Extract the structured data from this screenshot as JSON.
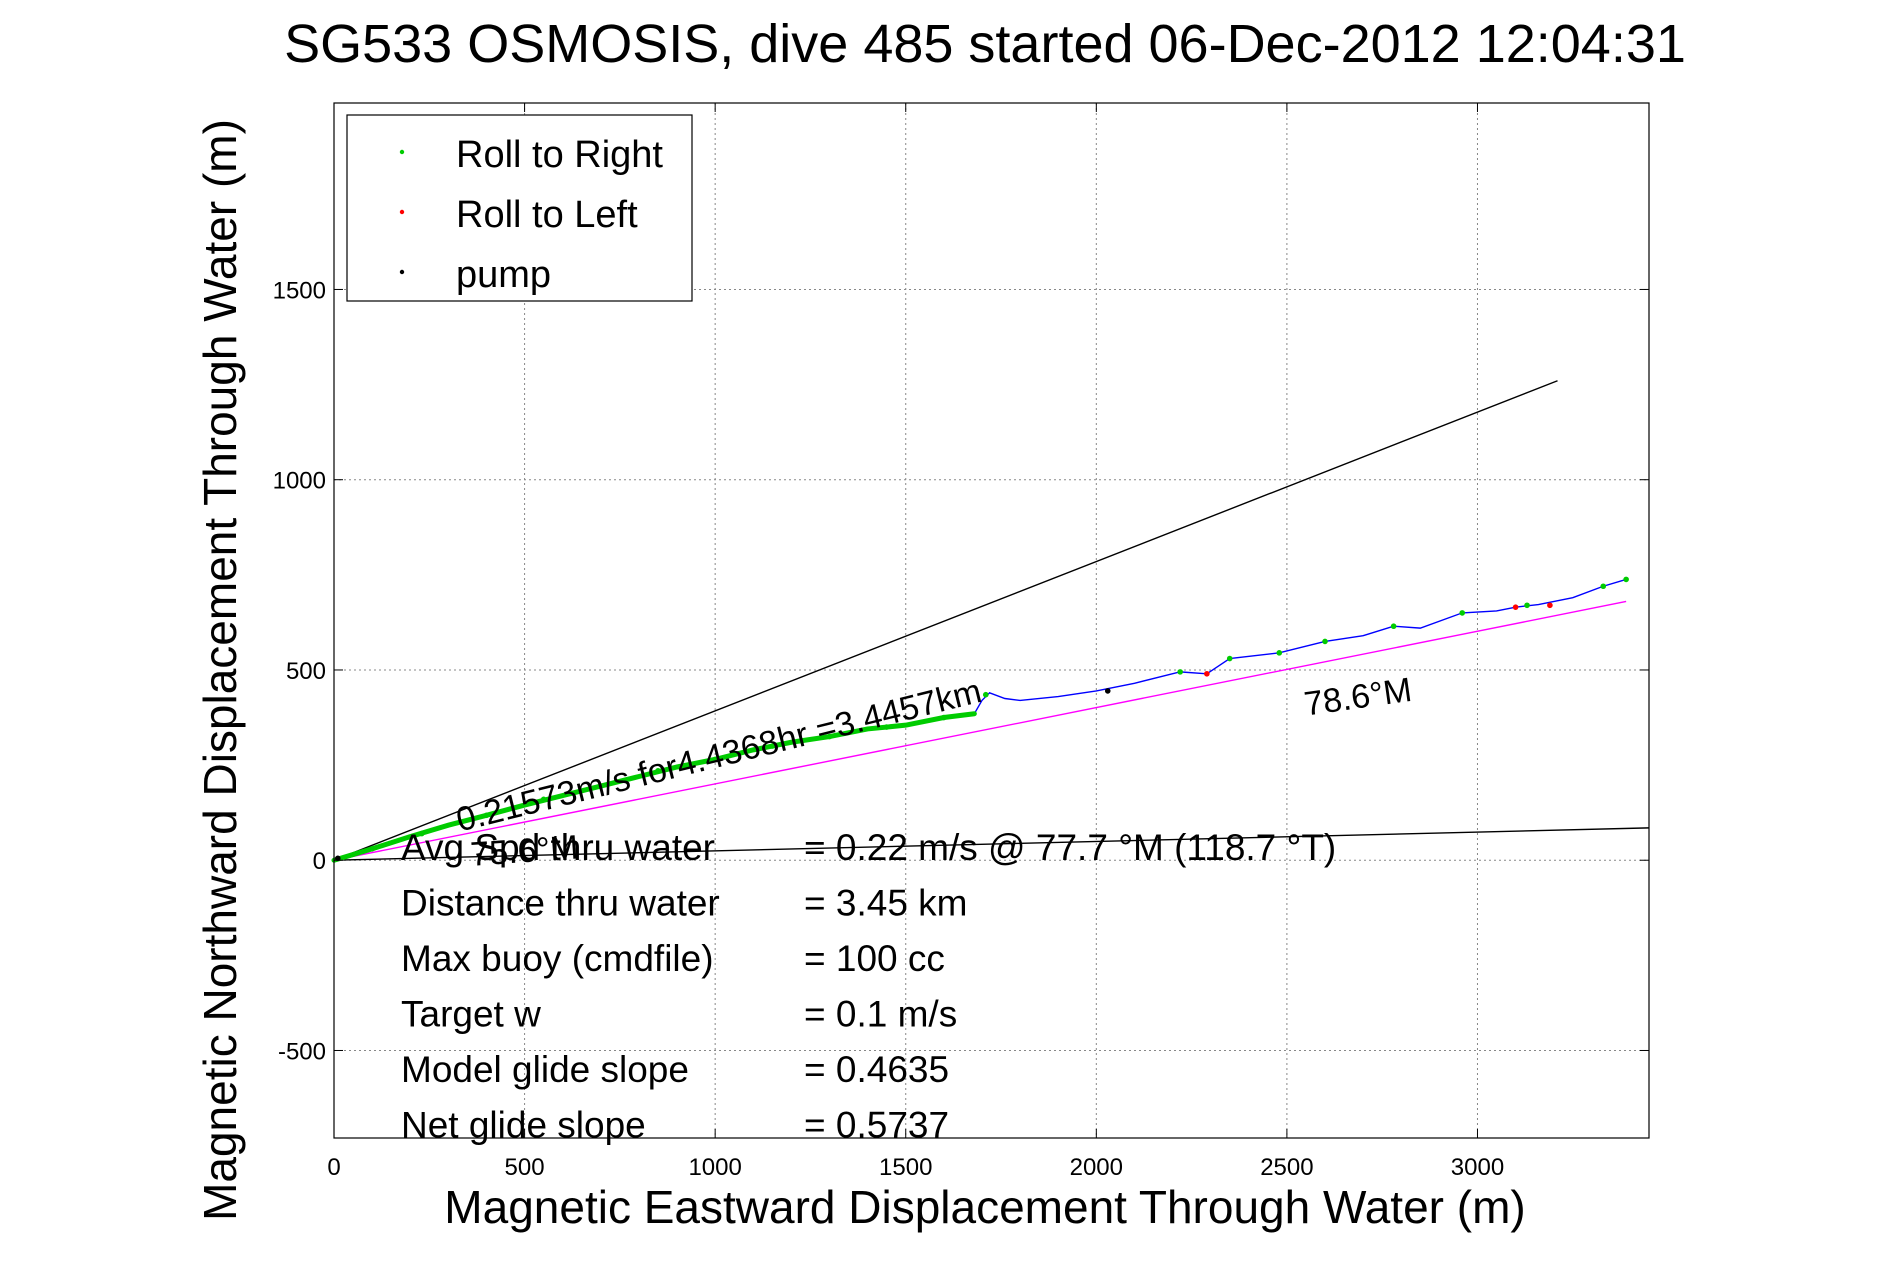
{
  "chart_data": {
    "type": "line",
    "title": "SG533 OSMOSIS, dive 485 started 06-Dec-2012 12:04:31",
    "xlabel": "Magnetic Eastward Displacement Through Water (m)",
    "ylabel": "Magnetic Northward Displacement Through Water (m)",
    "xlim": [
      0,
      3450
    ],
    "ylim": [
      -730,
      1990
    ],
    "xticks": [
      0,
      500,
      1000,
      1500,
      2000,
      2500,
      3000
    ],
    "yticks": [
      -500,
      0,
      500,
      1000,
      1500
    ],
    "grid": true,
    "legend_position": "top-left",
    "legend": [
      {
        "label": "Roll to Right",
        "color": "#00cc00"
      },
      {
        "label": "Roll to Left",
        "color": "#ff0000"
      },
      {
        "label": "pump",
        "color": "#000000"
      }
    ],
    "track": {
      "name": "track",
      "color": "#0000ff",
      "points": [
        [
          0,
          0
        ],
        [
          100,
          30
        ],
        [
          200,
          62
        ],
        [
          300,
          92
        ],
        [
          400,
          118
        ],
        [
          500,
          145
        ],
        [
          600,
          170
        ],
        [
          700,
          195
        ],
        [
          800,
          220
        ],
        [
          900,
          245
        ],
        [
          1000,
          265
        ],
        [
          1100,
          290
        ],
        [
          1200,
          310
        ],
        [
          1300,
          325
        ],
        [
          1400,
          345
        ],
        [
          1500,
          355
        ],
        [
          1600,
          375
        ],
        [
          1680,
          385
        ],
        [
          1700,
          420
        ],
        [
          1720,
          440
        ],
        [
          1760,
          425
        ],
        [
          1800,
          420
        ],
        [
          1900,
          430
        ],
        [
          2000,
          445
        ],
        [
          2100,
          465
        ],
        [
          2220,
          495
        ],
        [
          2290,
          490
        ],
        [
          2350,
          530
        ],
        [
          2480,
          545
        ],
        [
          2600,
          575
        ],
        [
          2700,
          590
        ],
        [
          2780,
          615
        ],
        [
          2850,
          610
        ],
        [
          2960,
          650
        ],
        [
          3050,
          655
        ],
        [
          3100,
          665
        ],
        [
          3160,
          672
        ],
        [
          3250,
          690
        ],
        [
          3330,
          720
        ],
        [
          3390,
          738
        ]
      ]
    },
    "roll_right_points": [
      [
        100,
        30
      ],
      [
        230,
        70
      ],
      [
        400,
        118
      ],
      [
        550,
        160
      ],
      [
        700,
        195
      ],
      [
        850,
        235
      ],
      [
        1000,
        265
      ],
      [
        1150,
        300
      ],
      [
        1300,
        325
      ],
      [
        1450,
        350
      ],
      [
        1600,
        375
      ],
      [
        1710,
        435
      ],
      [
        2220,
        495
      ],
      [
        2350,
        530
      ],
      [
        2480,
        545
      ],
      [
        2600,
        575
      ],
      [
        2780,
        615
      ],
      [
        2960,
        650
      ],
      [
        3130,
        670
      ],
      [
        3330,
        720
      ],
      [
        3390,
        738
      ]
    ],
    "roll_left_points": [
      [
        2290,
        490
      ],
      [
        3100,
        665
      ],
      [
        3190,
        670
      ]
    ],
    "pump_points": [
      [
        10,
        5
      ],
      [
        2030,
        445
      ]
    ],
    "reference_lines": [
      {
        "name": "upper-bound-line",
        "color": "#000000",
        "points": [
          [
            0,
            0
          ],
          [
            3210,
            1260
          ]
        ]
      },
      {
        "name": "drift-line",
        "color": "#000000",
        "points": [
          [
            0,
            0
          ],
          [
            3450,
            85
          ]
        ]
      },
      {
        "name": "heading-line",
        "color": "#ff00ff",
        "points": [
          [
            0,
            0
          ],
          [
            3390,
            680
          ]
        ]
      }
    ],
    "annotations": [
      {
        "text": "0.21573m/s for4.4368hr =3.4457km",
        "x": 330,
        "y": 75,
        "rotation_deg": -14
      },
      {
        "text": "78.6°M",
        "x": 2550,
        "y": 380,
        "rotation_deg": -8
      },
      {
        "text": "75.6°M",
        "x": 360,
        "y": -15,
        "rotation_deg": -4
      }
    ],
    "stats": [
      {
        "label": "Avg Spd thru water",
        "value": "=  0.22 m/s @  77.7 °M (118.7 °T)"
      },
      {
        "label": "Distance thru water",
        "value": "=  3.45 km"
      },
      {
        "label": "Max buoy (cmdfile)",
        "value": "= 100 cc"
      },
      {
        "label": "Target w",
        "value": "= 0.1 m/s"
      },
      {
        "label": "Model glide slope",
        "value": "= 0.4635"
      },
      {
        "label": "Net glide slope",
        "value": "= 0.5737"
      }
    ]
  }
}
